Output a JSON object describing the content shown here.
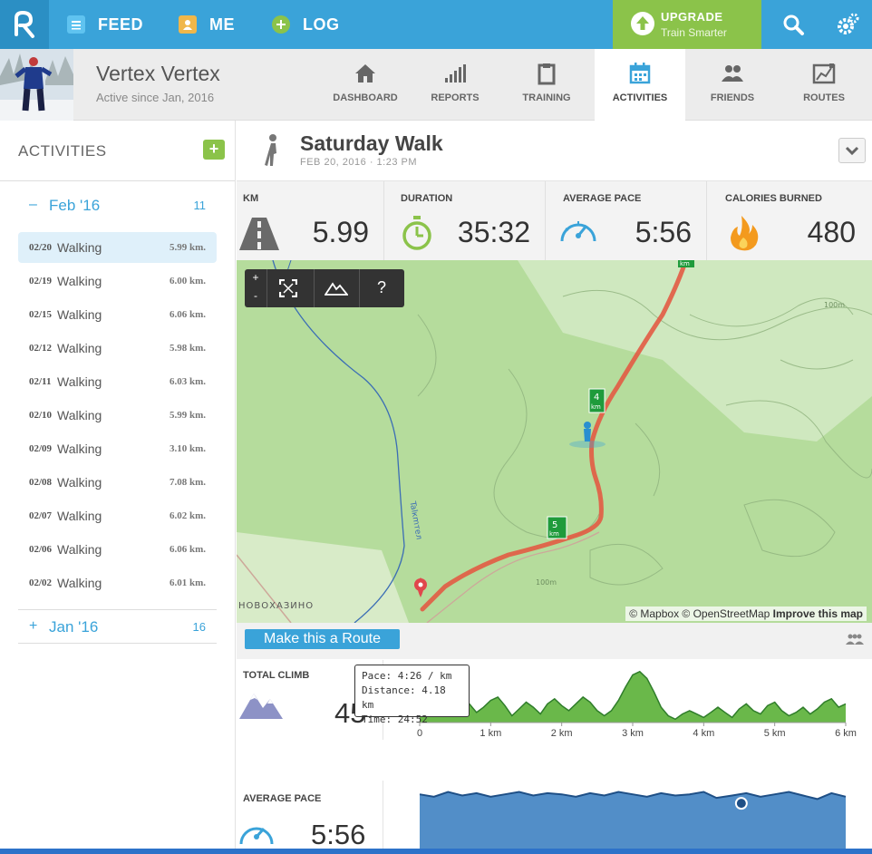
{
  "nav": {
    "feed": "FEED",
    "me": "ME",
    "log": "LOG",
    "upgrade_title": "UPGRADE",
    "upgrade_sub": "Train Smarter"
  },
  "profile": {
    "name": "Vertex Vertex",
    "since": "Active since Jan, 2016"
  },
  "tabs": [
    {
      "label": "DASHBOARD"
    },
    {
      "label": "REPORTS"
    },
    {
      "label": "TRAINING"
    },
    {
      "label": "ACTIVITIES"
    },
    {
      "label": "FRIENDS"
    },
    {
      "label": "ROUTES"
    }
  ],
  "sidebar": {
    "title": "ACTIVITIES",
    "add": "+",
    "month1": {
      "sym": "–",
      "name": "Feb '16",
      "count": "11"
    },
    "items": [
      {
        "date": "02/20",
        "type": "Walking",
        "km": "5.99 km."
      },
      {
        "date": "02/19",
        "type": "Walking",
        "km": "6.00 km."
      },
      {
        "date": "02/15",
        "type": "Walking",
        "km": "6.06 km."
      },
      {
        "date": "02/12",
        "type": "Walking",
        "km": "5.98 km."
      },
      {
        "date": "02/11",
        "type": "Walking",
        "km": "6.03 km."
      },
      {
        "date": "02/10",
        "type": "Walking",
        "km": "5.99 km."
      },
      {
        "date": "02/09",
        "type": "Walking",
        "km": "3.10 km."
      },
      {
        "date": "02/08",
        "type": "Walking",
        "km": "7.08 km."
      },
      {
        "date": "02/07",
        "type": "Walking",
        "km": "6.02 km."
      },
      {
        "date": "02/06",
        "type": "Walking",
        "km": "6.06 km."
      },
      {
        "date": "02/02",
        "type": "Walking",
        "km": "6.01 km."
      }
    ],
    "month2": {
      "sym": "+",
      "name": "Jan '16",
      "count": "16"
    }
  },
  "activity": {
    "title": "Saturday Walk",
    "date": "FEB 20, 2016  ·  1:23 PM"
  },
  "stats": {
    "km_label": "KM",
    "km": "5.99",
    "duration_label": "DURATION",
    "duration": "35:32",
    "pace_label": "AVERAGE PACE",
    "pace": "5:56",
    "cal_label": "CALORIES BURNED",
    "cal": "480"
  },
  "map": {
    "zoom_in": "+",
    "zoom_out": "-",
    "help": "?",
    "place": "НОВОХАЗИНО",
    "river": "Talкmтeл",
    "km_markers": [
      "km",
      "4\nkm",
      "5\nkm"
    ],
    "contour": "100m",
    "attrib_prefix": "© Mapbox © OpenStreetMap",
    "attrib_link": "Improve this map"
  },
  "make_route": "Make this a Route",
  "climb": {
    "label": "TOTAL CLIMB",
    "value": "45"
  },
  "pace_panel": {
    "label": "AVERAGE PACE",
    "value": "5:56"
  },
  "tooltip": {
    "pace": "Pace: 4:26 / km",
    "distance": "Distance: 4.18 km",
    "time": "Time: 24:52"
  },
  "chart_data": [
    {
      "type": "area",
      "title": "",
      "x_ticks": [
        "0",
        "1 km",
        "2 km",
        "3 km",
        "4 km",
        "5 km",
        "6 km"
      ],
      "x": [
        0,
        0.1,
        0.2,
        0.3,
        0.4,
        0.5,
        0.6,
        0.7,
        0.8,
        0.9,
        1.0,
        1.1,
        1.2,
        1.3,
        1.4,
        1.5,
        1.6,
        1.7,
        1.8,
        1.9,
        2.0,
        2.1,
        2.2,
        2.3,
        2.4,
        2.5,
        2.6,
        2.7,
        2.8,
        2.9,
        3.0,
        3.1,
        3.2,
        3.3,
        3.4,
        3.5,
        3.6,
        3.7,
        3.8,
        3.9,
        4.0,
        4.1,
        4.2,
        4.3,
        4.4,
        4.5,
        4.6,
        4.7,
        4.8,
        4.9,
        5.0,
        5.1,
        5.2,
        5.3,
        5.4,
        5.5,
        5.6,
        5.7,
        5.8,
        5.9,
        6.0
      ],
      "y": [
        14,
        22,
        30,
        24,
        15,
        20,
        28,
        22,
        12,
        18,
        26,
        30,
        20,
        8,
        16,
        24,
        18,
        10,
        22,
        28,
        20,
        14,
        22,
        30,
        24,
        14,
        8,
        14,
        26,
        42,
        56,
        60,
        52,
        36,
        18,
        8,
        4,
        10,
        14,
        10,
        6,
        12,
        18,
        12,
        6,
        16,
        22,
        14,
        10,
        20,
        24,
        14,
        8,
        12,
        18,
        10,
        16,
        24,
        28,
        18,
        22
      ],
      "ylim": [
        0,
        64
      ],
      "color": "#6ab84a"
    },
    {
      "type": "area",
      "title": "",
      "x": [
        0,
        0.2,
        0.4,
        0.6,
        0.8,
        1.0,
        1.2,
        1.4,
        1.6,
        1.8,
        2.0,
        2.2,
        2.4,
        2.6,
        2.8,
        3.0,
        3.2,
        3.4,
        3.6,
        3.8,
        4.0,
        4.18,
        4.4,
        4.6,
        4.8,
        5.0,
        5.2,
        5.4,
        5.6,
        5.8,
        6.0
      ],
      "y": [
        50,
        48,
        52,
        49,
        51,
        48,
        50,
        52,
        49,
        51,
        50,
        48,
        51,
        49,
        52,
        50,
        48,
        51,
        49,
        50,
        52,
        47,
        49,
        51,
        48,
        50,
        52,
        49,
        46,
        51,
        48
      ],
      "ylim": [
        0,
        60
      ],
      "color": "#3f82c2",
      "highlight": {
        "x": 4.18,
        "pace": "4:26",
        "distance": "4.18",
        "time": "24:52"
      }
    }
  ]
}
